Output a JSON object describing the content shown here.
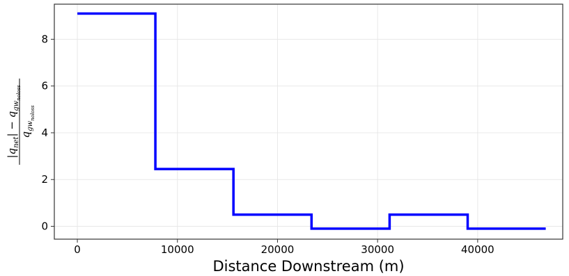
{
  "chart_data": {
    "type": "line",
    "step": true,
    "xlabel": "Distance Downstream (m)",
    "ylabel": {
      "numerator": "|q_net| − q_gw_noloss",
      "denominator": "q_gw_noloss"
    },
    "xlim": [
      -2300,
      48500
    ],
    "ylim": [
      -0.55,
      9.5
    ],
    "xticks": [
      0,
      10000,
      20000,
      30000,
      40000
    ],
    "xtick_labels": [
      "0",
      "10000",
      "20000",
      "30000",
      "40000"
    ],
    "yticks": [
      0,
      2,
      4,
      6,
      8
    ],
    "ytick_labels": [
      "0",
      "2",
      "4",
      "6",
      "8"
    ],
    "grid": true,
    "series": [
      {
        "color": "#0000ff",
        "x": [
          0,
          7800,
          7800,
          15600,
          15600,
          23400,
          23400,
          31200,
          31200,
          39000,
          39000,
          46800
        ],
        "y": [
          9.1,
          9.1,
          2.45,
          2.45,
          0.5,
          0.5,
          -0.1,
          -0.1,
          0.5,
          0.5,
          -0.1,
          -0.1
        ]
      }
    ]
  }
}
